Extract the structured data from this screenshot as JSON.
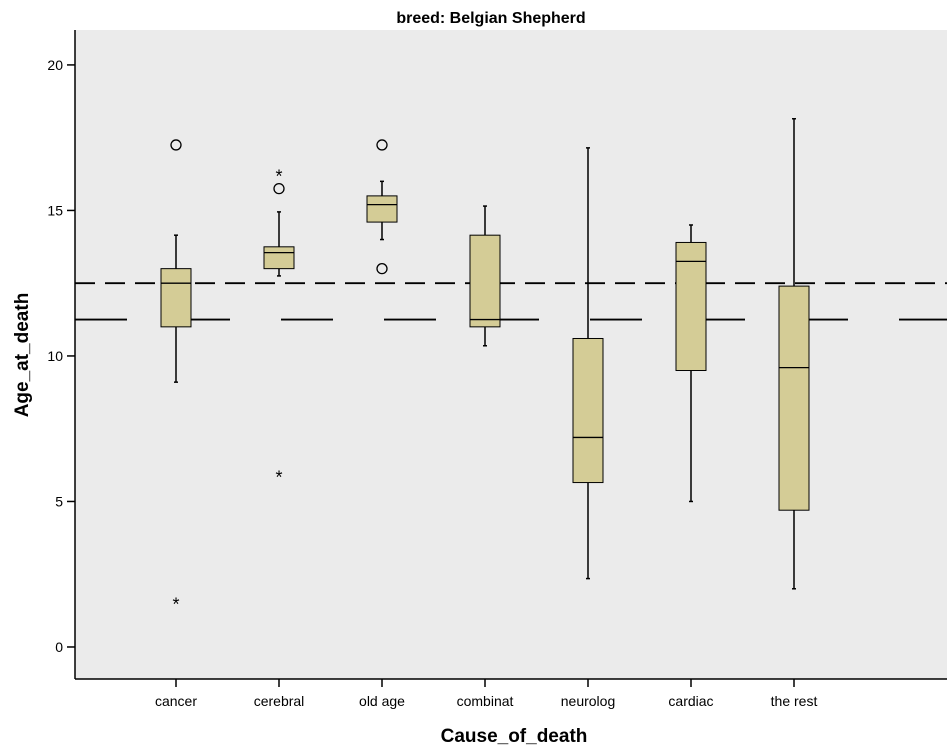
{
  "chart_data": {
    "type": "box",
    "title": "breed: Belgian Shepherd",
    "xlabel": "Cause_of_death",
    "ylabel": "Age_at_death",
    "ylim": [
      -1.1,
      21.2
    ],
    "yticks": [
      0,
      5,
      10,
      15,
      20
    ],
    "grid": false,
    "categories": [
      "cancer",
      "cerebral",
      "old age",
      "combinat",
      "neurolog",
      "cardiac",
      "the rest"
    ],
    "boxes": [
      {
        "category": "cancer",
        "whisker_low": 9.1,
        "q1": 11.0,
        "median": 12.5,
        "q3": 13.0,
        "whisker_high": 14.15,
        "outliers": [
          {
            "value": 17.25,
            "marker": "circle"
          },
          {
            "value": 1.5,
            "marker": "star"
          }
        ]
      },
      {
        "category": "cerebral",
        "whisker_low": 12.75,
        "q1": 13.0,
        "median": 13.55,
        "q3": 13.75,
        "whisker_high": 14.95,
        "outliers": [
          {
            "value": 16.2,
            "marker": "star"
          },
          {
            "value": 15.75,
            "marker": "circle"
          },
          {
            "value": 5.85,
            "marker": "star"
          }
        ]
      },
      {
        "category": "old age",
        "whisker_low": 14.0,
        "q1": 14.6,
        "median": 15.2,
        "q3": 15.5,
        "whisker_high": 16.0,
        "outliers": [
          {
            "value": 17.25,
            "marker": "circle"
          },
          {
            "value": 13.0,
            "marker": "circle"
          }
        ]
      },
      {
        "category": "combinat",
        "whisker_low": 10.35,
        "q1": 11.0,
        "median": 11.25,
        "q3": 14.15,
        "whisker_high": 15.15,
        "outliers": []
      },
      {
        "category": "neurolog",
        "whisker_low": 2.35,
        "q1": 5.65,
        "median": 7.2,
        "q3": 10.6,
        "whisker_high": 17.15,
        "outliers": []
      },
      {
        "category": "cardiac",
        "whisker_low": 5.0,
        "q1": 9.5,
        "median": 13.25,
        "q3": 13.9,
        "whisker_high": 14.5,
        "outliers": []
      },
      {
        "category": "the rest",
        "whisker_low": 2.0,
        "q1": 4.7,
        "median": 9.6,
        "q3": 12.4,
        "whisker_high": 18.15,
        "outliers": []
      }
    ],
    "reference_lines": [
      {
        "style": "dashed",
        "value": 12.5
      },
      {
        "style": "long-dashed",
        "value": 11.25
      }
    ],
    "colors": {
      "plot_background": "#ebebeb",
      "box_fill": "#d4cc96",
      "line": "#000000"
    }
  }
}
